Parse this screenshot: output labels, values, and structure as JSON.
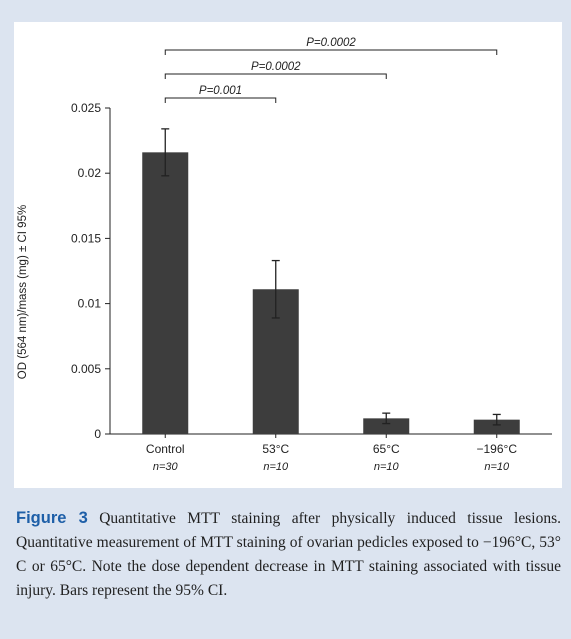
{
  "chart_data": {
    "type": "bar",
    "categories": [
      "Control",
      "53°C",
      "65°C",
      "−196°C"
    ],
    "n_labels": [
      "n=30",
      "n=10",
      "n=10",
      "n=10"
    ],
    "values": [
      0.0216,
      0.0111,
      0.0012,
      0.0011
    ],
    "ci_low": [
      0.0198,
      0.0089,
      0.0008,
      0.0007
    ],
    "ci_high": [
      0.0234,
      0.0133,
      0.0016,
      0.0015
    ],
    "ylabel": "OD (564 nm)/mass (mg) ± CI 95%",
    "ylim": [
      0,
      0.025
    ],
    "yticks": [
      "0",
      "0.005",
      "0.01",
      "0.015",
      "0.02",
      "0.025"
    ],
    "bar_color": "#3d3d3d",
    "significance": [
      {
        "from": "Control",
        "to": "53°C",
        "label": "P=0.001"
      },
      {
        "from": "Control",
        "to": "65°C",
        "label": "P=0.0002"
      },
      {
        "from": "Control",
        "to": "−196°C",
        "label": "P=0.0002"
      }
    ]
  },
  "caption": {
    "label": "Figure 3",
    "text": " Quantitative MTT staining after physically induced tissue lesions. Quantitative measurement of MTT staining of ovarian pedicles exposed to −196°C, 53° C or 65°C. Note the dose dependent decrease in MTT staining associated with tissue injury. Bars represent the 95% CI."
  }
}
